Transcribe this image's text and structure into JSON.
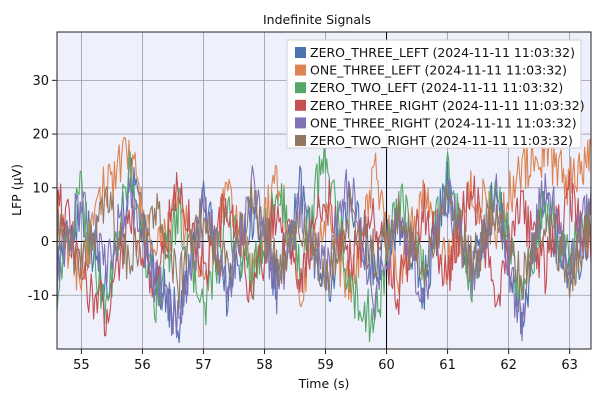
{
  "chart_data": {
    "type": "line",
    "title": "Indefinite Signals",
    "xlabel": "Time (s)",
    "ylabel": "LFP (µV)",
    "xlim": [
      54.6,
      63.35
    ],
    "ylim": [
      -20,
      39
    ],
    "xticks": [
      55,
      56,
      57,
      58,
      59,
      60,
      61,
      62,
      63
    ],
    "yticks": [
      -10,
      0,
      10,
      20,
      30
    ],
    "xtick_labels": [
      "55",
      "56",
      "57",
      "58",
      "59",
      "60",
      "61",
      "62",
      "63"
    ],
    "ytick_labels": [
      "-10",
      "0",
      "10",
      "20",
      "30"
    ],
    "vertical_marker_x": 60,
    "grid": true,
    "legend_position": "top-right",
    "background_color": "#eef0fb",
    "series": [
      {
        "name": "ZERO_THREE_LEFT (2024-11-11 11:03:32)",
        "color": "#4c72b0",
        "x": [
          54.6,
          55.0,
          55.4,
          55.8,
          56.2,
          56.6,
          57.0,
          57.4,
          57.8,
          58.2,
          58.6,
          59.0,
          59.4,
          59.8,
          60.2,
          60.6,
          61.0,
          61.4,
          61.8,
          62.2,
          62.6,
          63.0,
          63.35
        ],
        "y": [
          -4,
          6,
          -9,
          12,
          -6,
          -15,
          8,
          -10,
          5,
          -8,
          10,
          -12,
          7,
          -5,
          4,
          -9,
          11,
          -6,
          9,
          -14,
          6,
          -7,
          3
        ]
      },
      {
        "name": "ONE_THREE_LEFT (2024-11-11 11:03:32)",
        "color": "#dd8452",
        "x": [
          54.6,
          55.0,
          55.4,
          55.8,
          56.2,
          56.6,
          57.0,
          57.4,
          57.8,
          58.2,
          58.6,
          59.0,
          59.4,
          59.8,
          60.2,
          60.6,
          61.0,
          61.4,
          61.8,
          62.2,
          62.6,
          63.0,
          63.35
        ],
        "y": [
          3,
          -6,
          11,
          16,
          -4,
          7,
          -9,
          9,
          -6,
          12,
          -8,
          6,
          -10,
          13,
          -7,
          9,
          -5,
          10,
          3,
          14,
          17,
          11,
          18
        ]
      },
      {
        "name": "ZERO_TWO_LEFT (2024-11-11 11:03:32)",
        "color": "#55a868",
        "x": [
          54.6,
          55.0,
          55.4,
          55.8,
          56.2,
          56.6,
          57.0,
          57.4,
          57.8,
          58.2,
          58.6,
          59.0,
          59.4,
          59.8,
          60.2,
          60.6,
          61.0,
          61.4,
          61.8,
          62.2,
          62.6,
          63.0,
          63.35
        ],
        "y": [
          -8,
          9,
          -13,
          14,
          -11,
          6,
          -13,
          4,
          -7,
          9,
          -4,
          17,
          -9,
          -15,
          8,
          -6,
          12,
          -8,
          10,
          -11,
          7,
          -3,
          5
        ]
      },
      {
        "name": "ZERO_THREE_RIGHT (2024-11-11 11:03:32)",
        "color": "#c44e52",
        "x": [
          54.6,
          55.0,
          55.4,
          55.8,
          56.2,
          56.6,
          57.0,
          57.4,
          57.8,
          58.2,
          58.6,
          59.0,
          59.4,
          59.8,
          60.2,
          60.6,
          61.0,
          61.4,
          61.8,
          62.2,
          62.6,
          63.0,
          63.35
        ],
        "y": [
          11,
          -7,
          -13,
          5,
          -8,
          10,
          -5,
          7,
          -10,
          6,
          -6,
          9,
          -4,
          5,
          -9,
          7,
          -7,
          11,
          -10,
          6,
          -5,
          10,
          -4
        ]
      },
      {
        "name": "ONE_THREE_RIGHT (2024-11-11 11:03:32)",
        "color": "#8172b3",
        "x": [
          54.6,
          55.0,
          55.4,
          55.8,
          56.2,
          56.6,
          57.0,
          57.4,
          57.8,
          58.2,
          58.6,
          59.0,
          59.4,
          59.8,
          60.2,
          60.6,
          61.0,
          61.4,
          61.8,
          62.2,
          62.6,
          63.0,
          63.35
        ],
        "y": [
          -6,
          8,
          -5,
          9,
          -7,
          -16,
          6,
          -8,
          10,
          -9,
          7,
          -5,
          11,
          -12,
          6,
          -10,
          9,
          -7,
          8,
          -15,
          12,
          -6,
          10
        ]
      },
      {
        "name": "ZERO_TWO_RIGHT (2024-11-11 11:03:32)",
        "color": "#937860",
        "x": [
          54.6,
          55.0,
          55.4,
          55.8,
          56.2,
          56.6,
          57.0,
          57.4,
          57.8,
          58.2,
          58.6,
          59.0,
          59.4,
          59.8,
          60.2,
          60.6,
          61.0,
          61.4,
          61.8,
          62.2,
          62.6,
          63.0,
          63.35
        ],
        "y": [
          2,
          -5,
          7,
          -4,
          6,
          -8,
          5,
          -6,
          8,
          -5,
          4,
          -7,
          6,
          -3,
          5,
          -6,
          7,
          -4,
          6,
          -8,
          5,
          -6,
          4
        ]
      }
    ]
  }
}
